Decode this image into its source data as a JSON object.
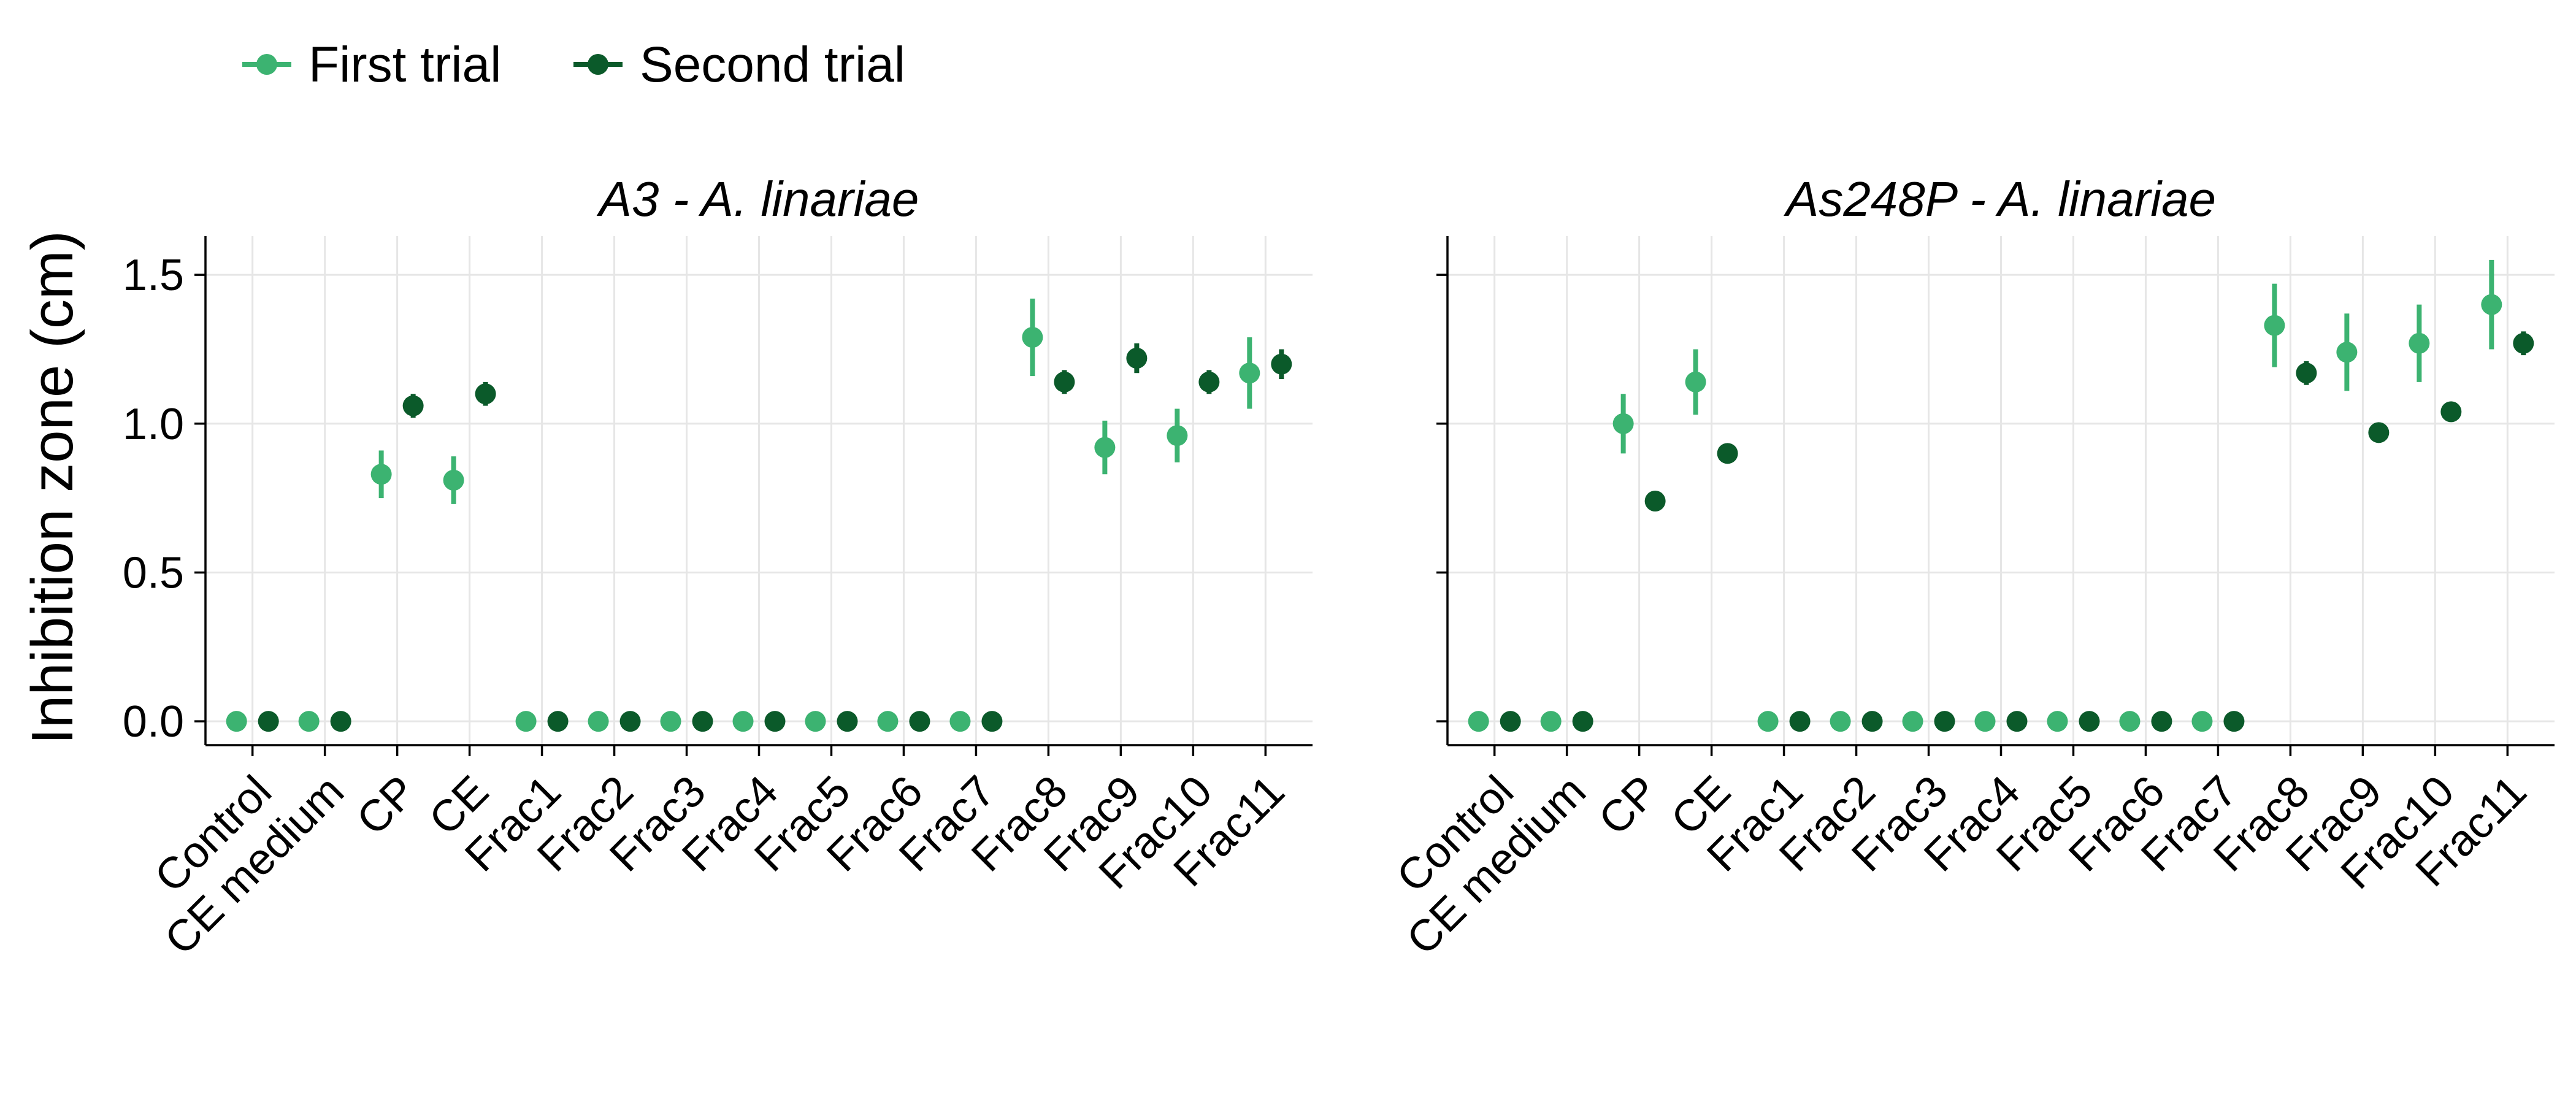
{
  "chart_data": {
    "type": "scatter",
    "ylabel": "Inhibition zone (cm)",
    "ylim": [
      -0.08,
      1.63
    ],
    "yticks": [
      0.0,
      0.5,
      1.0,
      1.5
    ],
    "ytick_labels": [
      "0.0",
      "0.5",
      "1.0",
      "1.5"
    ],
    "grid": true,
    "legend_position": "top-left",
    "categories": [
      "Control",
      "CE medium",
      "CP",
      "CE",
      "Frac1",
      "Frac2",
      "Frac3",
      "Frac4",
      "Frac5",
      "Frac6",
      "Frac7",
      "Frac8",
      "Frac9",
      "Frac10",
      "Frac11"
    ],
    "series": [
      {
        "name": "First trial",
        "color": "#3cb371"
      },
      {
        "name": "Second trial",
        "color": "#0b5a2a"
      }
    ],
    "panels": [
      {
        "title": "A3 - A. linariae",
        "series_values": [
          {
            "name": "First trial",
            "values": [
              0,
              0,
              0.83,
              0.81,
              0,
              0,
              0,
              0,
              0,
              0,
              0,
              1.29,
              0.92,
              0.96,
              1.17
            ],
            "errors": [
              0,
              0,
              0.08,
              0.08,
              0,
              0,
              0,
              0,
              0,
              0,
              0,
              0.13,
              0.09,
              0.09,
              0.12
            ]
          },
          {
            "name": "Second trial",
            "values": [
              0,
              0,
              1.06,
              1.1,
              0,
              0,
              0,
              0,
              0,
              0,
              0,
              1.14,
              1.22,
              1.14,
              1.2
            ],
            "errors": [
              0,
              0,
              0.04,
              0.04,
              0,
              0,
              0,
              0,
              0,
              0,
              0,
              0.04,
              0.05,
              0.04,
              0.05
            ]
          }
        ]
      },
      {
        "title": "As248P - A. linariae",
        "series_values": [
          {
            "name": "First trial",
            "values": [
              0,
              0,
              1.0,
              1.14,
              0,
              0,
              0,
              0,
              0,
              0,
              0,
              1.33,
              1.24,
              1.27,
              1.4
            ],
            "errors": [
              0,
              0,
              0.1,
              0.11,
              0,
              0,
              0,
              0,
              0,
              0,
              0,
              0.14,
              0.13,
              0.13,
              0.15
            ]
          },
          {
            "name": "Second trial",
            "values": [
              0,
              0,
              0.74,
              0.9,
              0,
              0,
              0,
              0,
              0,
              0,
              0,
              1.17,
              0.97,
              1.04,
              1.27
            ],
            "errors": [
              0,
              0,
              0.0,
              0.0,
              0,
              0,
              0,
              0,
              0,
              0,
              0,
              0.04,
              0.03,
              0.03,
              0.04
            ]
          }
        ]
      }
    ]
  }
}
